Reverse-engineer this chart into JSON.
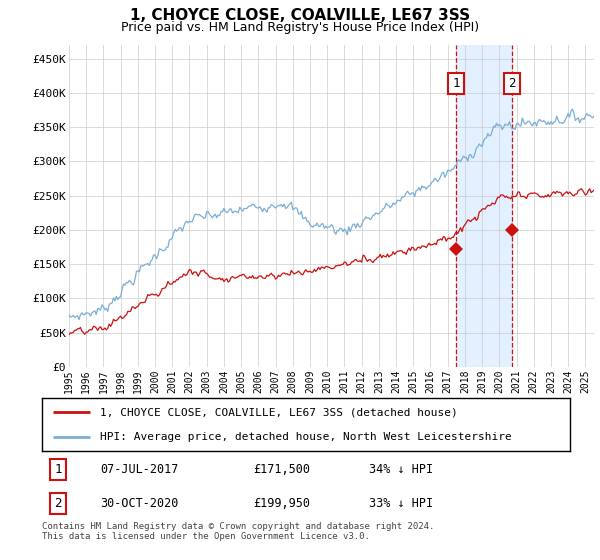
{
  "title": "1, CHOYCE CLOSE, COALVILLE, LE67 3SS",
  "subtitle": "Price paid vs. HM Land Registry's House Price Index (HPI)",
  "legend_line1": "1, CHOYCE CLOSE, COALVILLE, LE67 3SS (detached house)",
  "legend_line2": "HPI: Average price, detached house, North West Leicestershire",
  "annotation1_label": "1",
  "annotation1_date": "07-JUL-2017",
  "annotation1_price": "£171,500",
  "annotation1_hpi": "34% ↓ HPI",
  "annotation2_label": "2",
  "annotation2_date": "30-OCT-2020",
  "annotation2_price": "£199,950",
  "annotation2_hpi": "33% ↓ HPI",
  "footer": "Contains HM Land Registry data © Crown copyright and database right 2024.\nThis data is licensed under the Open Government Licence v3.0.",
  "hpi_color": "#7aaed6",
  "price_color": "#cc1111",
  "annotation_color": "#cc1111",
  "shaded_color": "#ddeeff",
  "ylim": [
    0,
    470000
  ],
  "yticks": [
    0,
    50000,
    100000,
    150000,
    200000,
    250000,
    300000,
    350000,
    400000,
    450000
  ],
  "ytick_labels": [
    "£0",
    "£50K",
    "£100K",
    "£150K",
    "£200K",
    "£250K",
    "£300K",
    "£350K",
    "£400K",
    "£450K"
  ],
  "ann1_year_val": 2017.5,
  "ann2_year_val": 2020.75,
  "ann1_price": 171500,
  "ann2_price": 199950,
  "xlim_start": 1995,
  "xlim_end": 2025.5
}
